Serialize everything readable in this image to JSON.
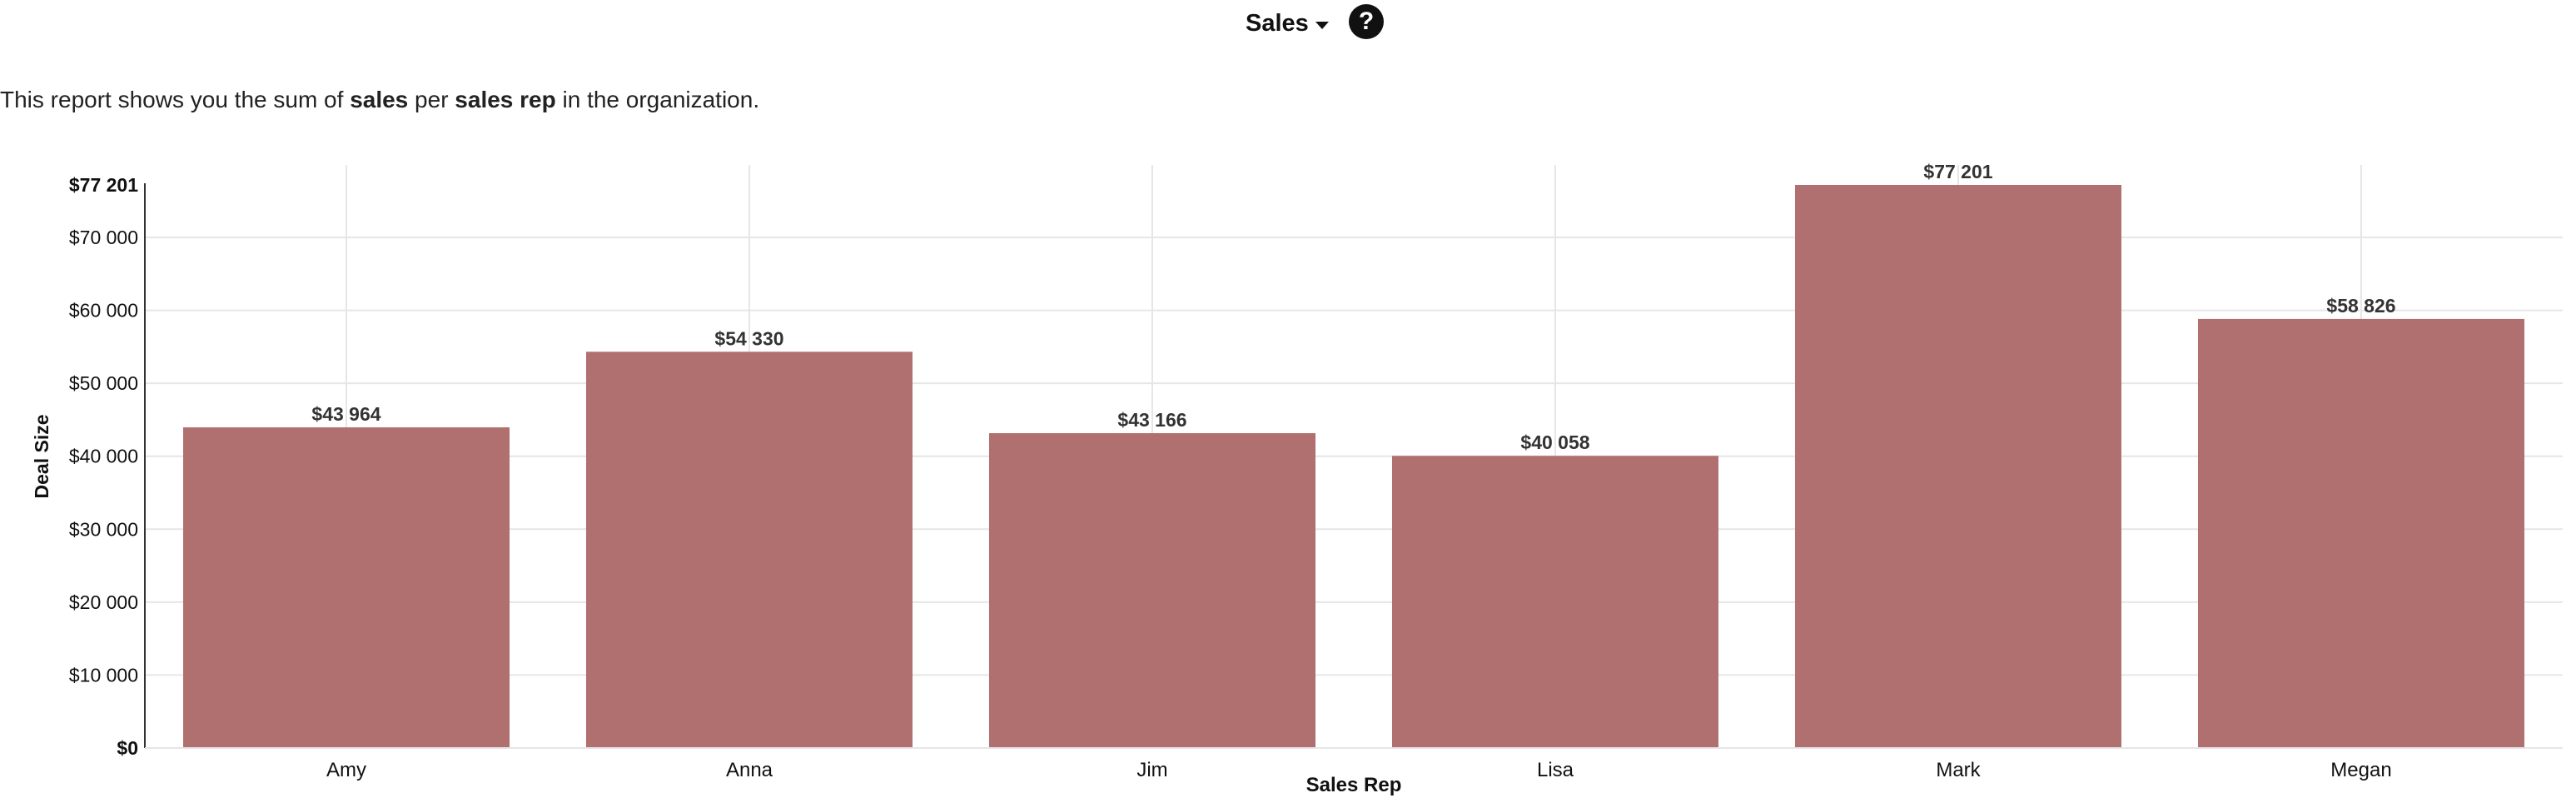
{
  "header": {
    "report_title": "Sales",
    "help_glyph": "?"
  },
  "description": {
    "part1": "This report shows you the sum of ",
    "bold1": "sales",
    "part2": " per ",
    "bold2": "sales rep",
    "part3": " in the organization."
  },
  "chart_data": {
    "type": "bar",
    "categories": [
      "Amy",
      "Anna",
      "Jim",
      "Lisa",
      "Mark",
      "Megan"
    ],
    "values": [
      43964,
      54330,
      43166,
      40058,
      77201,
      58826
    ],
    "value_labels": [
      "$43 964",
      "$54 330",
      "$43 166",
      "$40 058",
      "$77 201",
      "$58 826"
    ],
    "xlabel": "Sales Rep",
    "ylabel": "Deal Size",
    "ylim": [
      0,
      77201
    ],
    "yticks": [
      {
        "value": 0,
        "label": "$0",
        "bold": true
      },
      {
        "value": 10000,
        "label": "$10 000",
        "bold": false
      },
      {
        "value": 20000,
        "label": "$20 000",
        "bold": false
      },
      {
        "value": 30000,
        "label": "$30 000",
        "bold": false
      },
      {
        "value": 40000,
        "label": "$40 000",
        "bold": false
      },
      {
        "value": 50000,
        "label": "$50 000",
        "bold": false
      },
      {
        "value": 60000,
        "label": "$60 000",
        "bold": false
      },
      {
        "value": 70000,
        "label": "$70 000",
        "bold": false
      },
      {
        "value": 77201,
        "label": "$77 201",
        "bold": true
      }
    ],
    "grid": true,
    "colors": {
      "bar": "#b07070",
      "grid": "#e6e6e6",
      "axis": "#333333"
    }
  }
}
